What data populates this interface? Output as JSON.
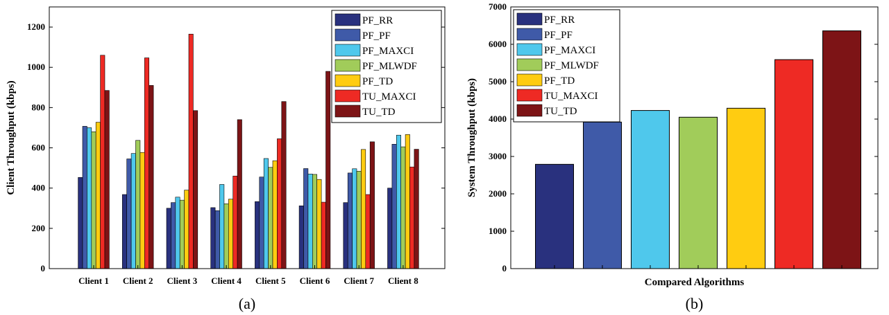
{
  "colors": {
    "PF_RR": "#29317e",
    "PF_PF": "#3f5aa8",
    "PF_MAXCI": "#4fc8ec",
    "PF_MLWDF": "#a1cc5a",
    "PF_TD": "#ffcc11",
    "TU_MAXCI": "#ee2a24",
    "TU_TD": "#7d1416"
  },
  "chart_data": [
    {
      "type": "bar",
      "panel_label": "(a)",
      "xlabel": "",
      "ylabel": "Client Throughput (kbps)",
      "ylim": [
        0,
        1300
      ],
      "yticks": [
        0,
        200,
        400,
        600,
        800,
        1000,
        1200
      ],
      "legend_position": "top-right",
      "categories": [
        "Client 1",
        "Client 2",
        "Client 3",
        "Client 4",
        "Client 5",
        "Client 6",
        "Client 7",
        "Client 8"
      ],
      "series": [
        {
          "name": "PF_RR",
          "values": [
            453,
            368,
            300,
            303,
            333,
            312,
            328,
            400
          ]
        },
        {
          "name": "PF_PF",
          "values": [
            707,
            545,
            328,
            288,
            455,
            497,
            475,
            618
          ]
        },
        {
          "name": "PF_MAXCI",
          "values": [
            700,
            572,
            355,
            418,
            547,
            470,
            496,
            663
          ]
        },
        {
          "name": "PF_MLWDF",
          "values": [
            680,
            637,
            340,
            322,
            503,
            468,
            484,
            605
          ]
        },
        {
          "name": "PF_TD",
          "values": [
            727,
            577,
            390,
            345,
            536,
            443,
            592,
            666
          ]
        },
        {
          "name": "TU_MAXCI",
          "values": [
            1060,
            1047,
            1165,
            460,
            645,
            330,
            368,
            505
          ]
        },
        {
          "name": "TU_TD",
          "values": [
            885,
            910,
            785,
            740,
            830,
            980,
            630,
            593
          ]
        }
      ]
    },
    {
      "type": "bar",
      "panel_label": "(b)",
      "xlabel": "Compared Algorithms",
      "ylabel": "System Throughput (kbps)",
      "ylim": [
        0,
        7000
      ],
      "yticks": [
        0,
        1000,
        2000,
        3000,
        4000,
        5000,
        6000,
        7000
      ],
      "legend_position": "top-left",
      "categories": [
        "PF_RR",
        "PF_PF",
        "PF_MAXCI",
        "PF_MLWDF",
        "PF_TD",
        "TU_MAXCI",
        "TU_TD"
      ],
      "values": [
        2790,
        3920,
        4230,
        4050,
        4290,
        5590,
        6360
      ]
    }
  ]
}
